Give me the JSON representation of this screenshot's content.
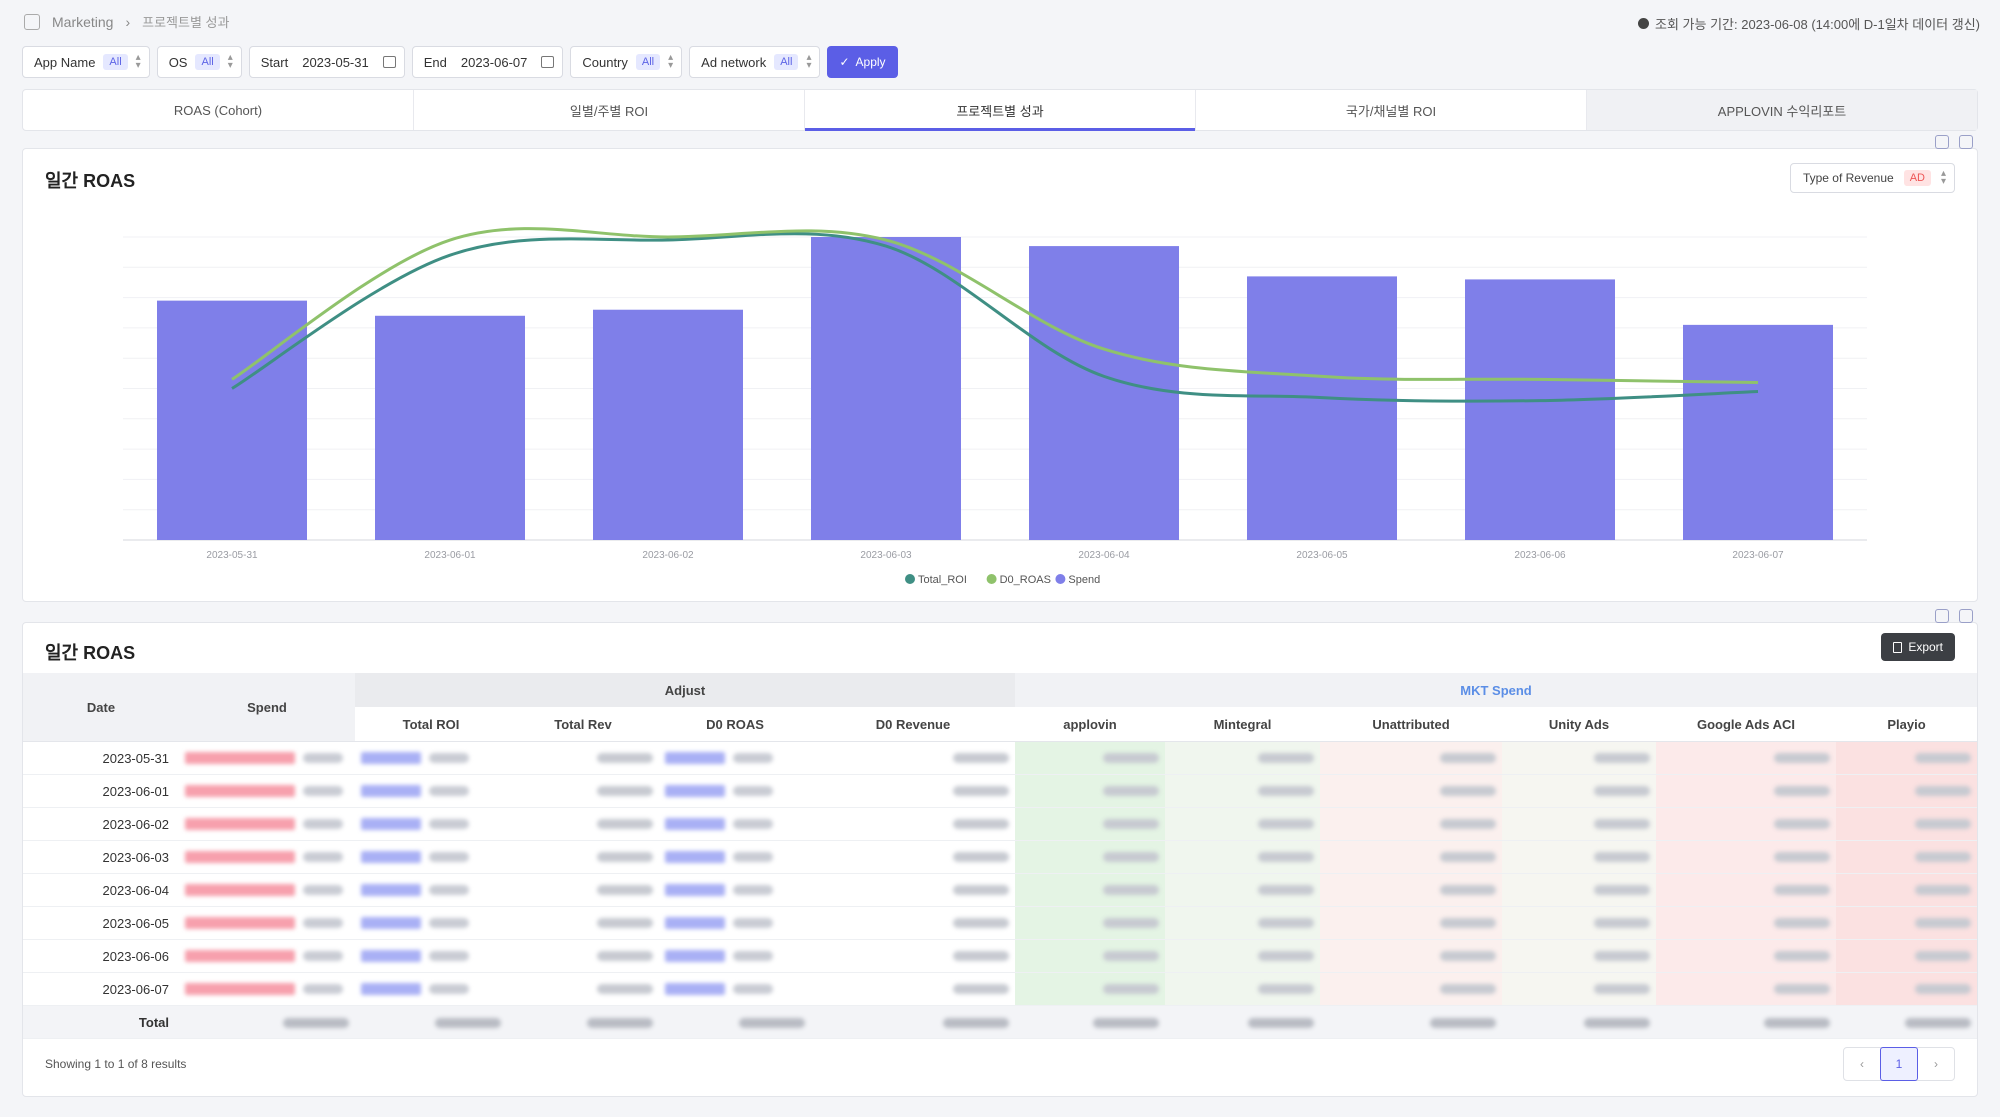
{
  "breadcrumb": {
    "root": "Marketing",
    "current": "프로젝트별 성과"
  },
  "availability": "조회 가능 기간: 2023-06-08 (14:00에 D-1일차 데이터 갱신)",
  "filters": {
    "app_name": {
      "label": "App Name",
      "value": "All"
    },
    "os": {
      "label": "OS",
      "value": "All"
    },
    "start": {
      "label": "Start",
      "value": "2023-05-31"
    },
    "end": {
      "label": "End",
      "value": "2023-06-07"
    },
    "country": {
      "label": "Country",
      "value": "All"
    },
    "ad_network": {
      "label": "Ad network",
      "value": "All"
    },
    "apply_label": "Apply"
  },
  "tabs": [
    {
      "label": "ROAS (Cohort)"
    },
    {
      "label": "일별/주별 ROI"
    },
    {
      "label": "프로젝트별 성과"
    },
    {
      "label": "국가/채널별 ROI"
    },
    {
      "label": "APPLOVIN 수익리포트"
    }
  ],
  "chart_panel": {
    "title": "일간 ROAS",
    "revenue_select": {
      "label": "Type of Revenue",
      "value": "AD"
    }
  },
  "chart_data": {
    "type": "bar",
    "categories": [
      "2023-05-31",
      "2023-06-01",
      "2023-06-02",
      "2023-06-03",
      "2023-06-04",
      "2023-06-05",
      "2023-06-06",
      "2023-06-07"
    ],
    "series": [
      {
        "name": "Spend",
        "type": "bar",
        "color": "#7f7fe9",
        "values": [
          79,
          74,
          76,
          100,
          97,
          87,
          86,
          71
        ]
      },
      {
        "name": "Total_ROI",
        "type": "line",
        "color": "#3f8f84",
        "values": [
          50,
          94,
          99,
          97,
          54,
          47,
          46,
          49
        ]
      },
      {
        "name": "D0_ROAS",
        "type": "line",
        "color": "#8fc26b",
        "values": [
          53,
          99,
          100,
          99,
          63,
          54,
          53,
          52
        ]
      }
    ],
    "ylim": [
      0,
      100
    ],
    "grid": true,
    "legend": "bottom-center"
  },
  "table_panel": {
    "title": "일간 ROAS",
    "export_label": "Export",
    "group_headers": {
      "adjust": "Adjust",
      "mkt_spend": "MKT Spend"
    },
    "columns": {
      "date": "Date",
      "spend": "Spend",
      "total_roi": "Total ROI",
      "total_rev": "Total Rev",
      "d0_roas": "D0 ROAS",
      "d0_revenue": "D0 Revenue",
      "applovin": "applovin",
      "mintegral": "Mintegral",
      "unattributed": "Unattributed",
      "unity_ads": "Unity Ads",
      "google_ads_aci": "Google Ads ACI",
      "playio": "Playio"
    },
    "rows": [
      {
        "date": "2023-05-31"
      },
      {
        "date": "2023-06-01"
      },
      {
        "date": "2023-06-02"
      },
      {
        "date": "2023-06-03"
      },
      {
        "date": "2023-06-04"
      },
      {
        "date": "2023-06-05"
      },
      {
        "date": "2023-06-06"
      },
      {
        "date": "2023-06-07"
      }
    ],
    "total_label": "Total",
    "footer": "Showing 1 to 1 of 8 results",
    "page": "1"
  },
  "colors": {
    "accent": "#5b5ee6",
    "bar": "#7f7fe9",
    "total_roi": "#3f8f84",
    "d0_roas": "#8fc26b"
  }
}
